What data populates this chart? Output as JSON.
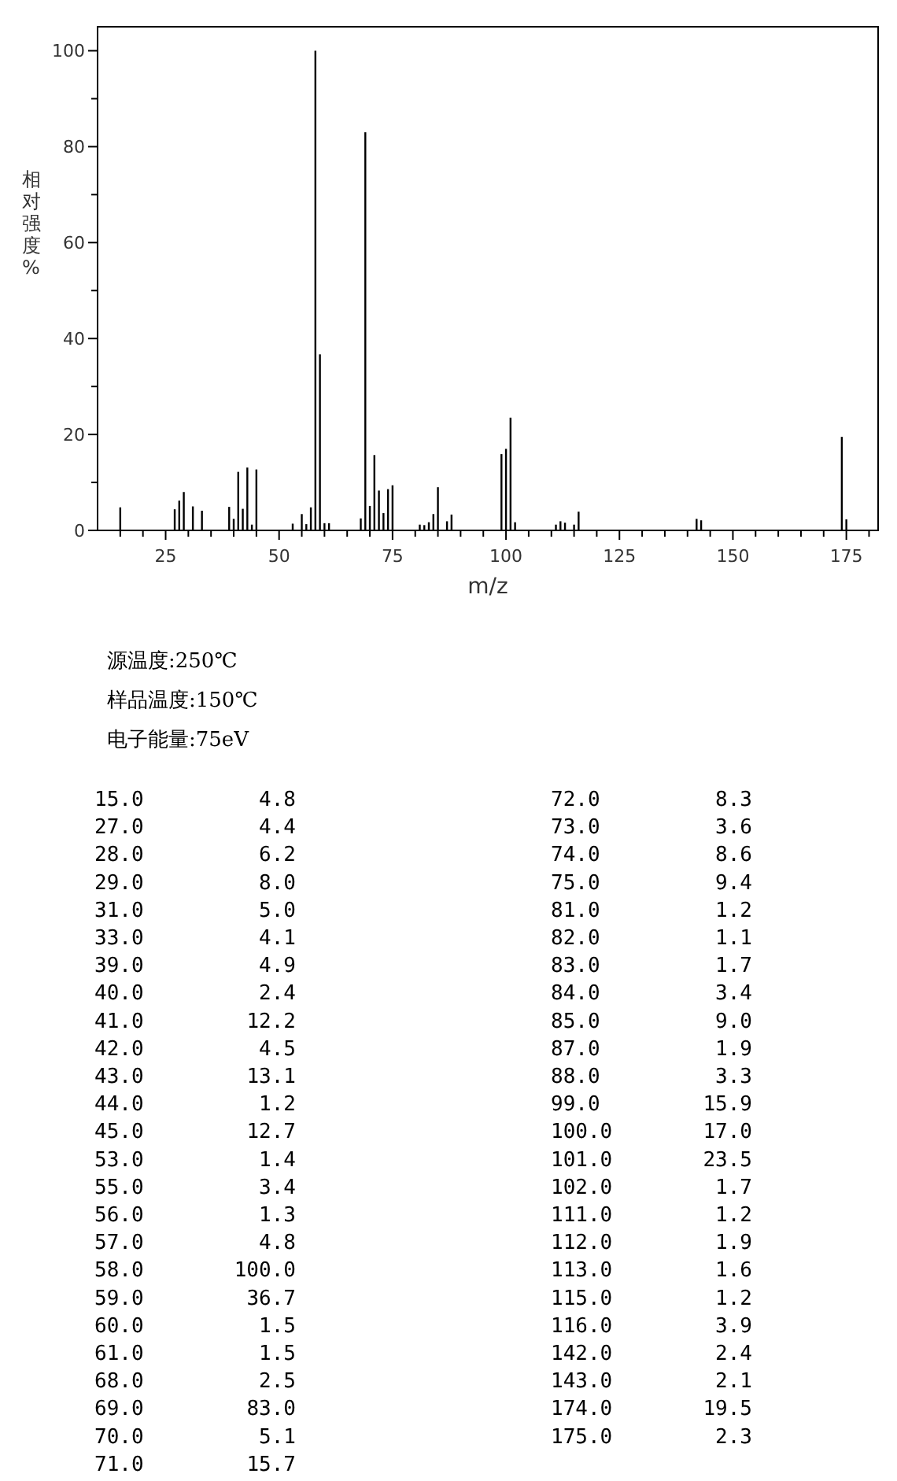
{
  "chart_data": {
    "type": "bar",
    "xlabel": "m/z",
    "ylabel": "相对强度%",
    "x": [
      15,
      27,
      28,
      29,
      31,
      33,
      39,
      40,
      41,
      42,
      43,
      44,
      45,
      53,
      55,
      56,
      57,
      58,
      59,
      60,
      61,
      68,
      69,
      70,
      71,
      72,
      73,
      74,
      75,
      81,
      82,
      83,
      84,
      85,
      87,
      88,
      99,
      100,
      101,
      102,
      111,
      112,
      113,
      115,
      116,
      142,
      143,
      174,
      175
    ],
    "series": [
      {
        "color": "#000000",
        "values": [
          4.8,
          4.4,
          6.2,
          8.0,
          5.0,
          4.1,
          4.9,
          2.4,
          12.2,
          4.5,
          13.1,
          1.2,
          12.7,
          1.4,
          3.4,
          1.3,
          4.8,
          100.0,
          36.7,
          1.5,
          1.5,
          2.5,
          83.0,
          5.1,
          15.7,
          8.3,
          3.6,
          8.6,
          9.4,
          1.2,
          1.1,
          1.7,
          3.4,
          9.0,
          1.9,
          3.3,
          15.9,
          17.0,
          23.5,
          1.7,
          1.2,
          1.9,
          1.6,
          1.2,
          3.9,
          2.4,
          2.1,
          19.5,
          2.3
        ]
      }
    ],
    "xlim": [
      10,
      182
    ],
    "ylim": [
      0,
      105
    ],
    "xticks": [
      {
        "value": 15,
        "label": null
      },
      {
        "value": 20,
        "label": null
      },
      25,
      {
        "value": 30,
        "label": null
      },
      {
        "value": 35,
        "label": null
      },
      {
        "value": 40,
        "label": null
      },
      {
        "value": 45,
        "label": null
      },
      50,
      {
        "value": 55,
        "label": null
      },
      {
        "value": 60,
        "label": null
      },
      {
        "value": 65,
        "label": null
      },
      {
        "value": 70,
        "label": null
      },
      75,
      {
        "value": 80,
        "label": null
      },
      {
        "value": 85,
        "label": null
      },
      {
        "value": 90,
        "label": null
      },
      {
        "value": 95,
        "label": null
      },
      100,
      {
        "value": 105,
        "label": null
      },
      {
        "value": 110,
        "label": null
      },
      {
        "value": 115,
        "label": null
      },
      {
        "value": 120,
        "label": null
      },
      125,
      {
        "value": 130,
        "label": null
      },
      {
        "value": 135,
        "label": null
      },
      {
        "value": 140,
        "label": null
      },
      {
        "value": 145,
        "label": null
      },
      150,
      {
        "value": 155,
        "label": null
      },
      {
        "value": 160,
        "label": null
      },
      {
        "value": 165,
        "label": null
      },
      {
        "value": 170,
        "label": null
      },
      175,
      {
        "value": 180,
        "label": null
      }
    ],
    "yticks": [
      0,
      {
        "value": 10,
        "label": null
      },
      20,
      {
        "value": 30,
        "label": null
      },
      40,
      {
        "value": 50,
        "label": null
      },
      60,
      {
        "value": 70,
        "label": null
      },
      80,
      {
        "value": 90,
        "label": null
      },
      100
    ],
    "annotations": [
      "源温度:250℃",
      "样品温度:150℃",
      "电子能量:75eV",
      "15.0 4.8",
      "27.0 4.4",
      "28.0 6.2",
      "29.0 8.0",
      "31.0 5.0",
      "33.0 4.1",
      "39.0 4.9",
      "40.0 2.4",
      "41.0 12.2",
      "42.0 4.5",
      "43.0 13.1",
      "44.0 1.2",
      "45.0 12.7",
      "53.0 1.4",
      "55.0 3.4",
      "56.0 1.3",
      "57.0 4.8",
      "58.0 100.0",
      "59.0 36.7",
      "60.0 1.5",
      "61.0 1.5",
      "68.0 2.5",
      "69.0 83.0",
      "70.0 5.1",
      "71.0 15.7",
      "72.0 8.3",
      "73.0 3.6",
      "74.0 8.6",
      "75.0 9.4",
      "81.0 1.2",
      "82.0 1.1",
      "83.0 1.7",
      "84.0 3.4",
      "85.0 9.0",
      "87.0 1.9",
      "88.0 3.3",
      "99.0 15.9",
      "100.0 17.0",
      "101.0 23.5",
      "102.0 1.7",
      "111.0 1.2",
      "112.0 1.9",
      "113.0 1.6",
      "115.0 1.2",
      "116.0 3.9",
      "142.0 2.4",
      "143.0 2.1",
      "174.0 19.5",
      "175.0 2.3"
    ]
  }
}
